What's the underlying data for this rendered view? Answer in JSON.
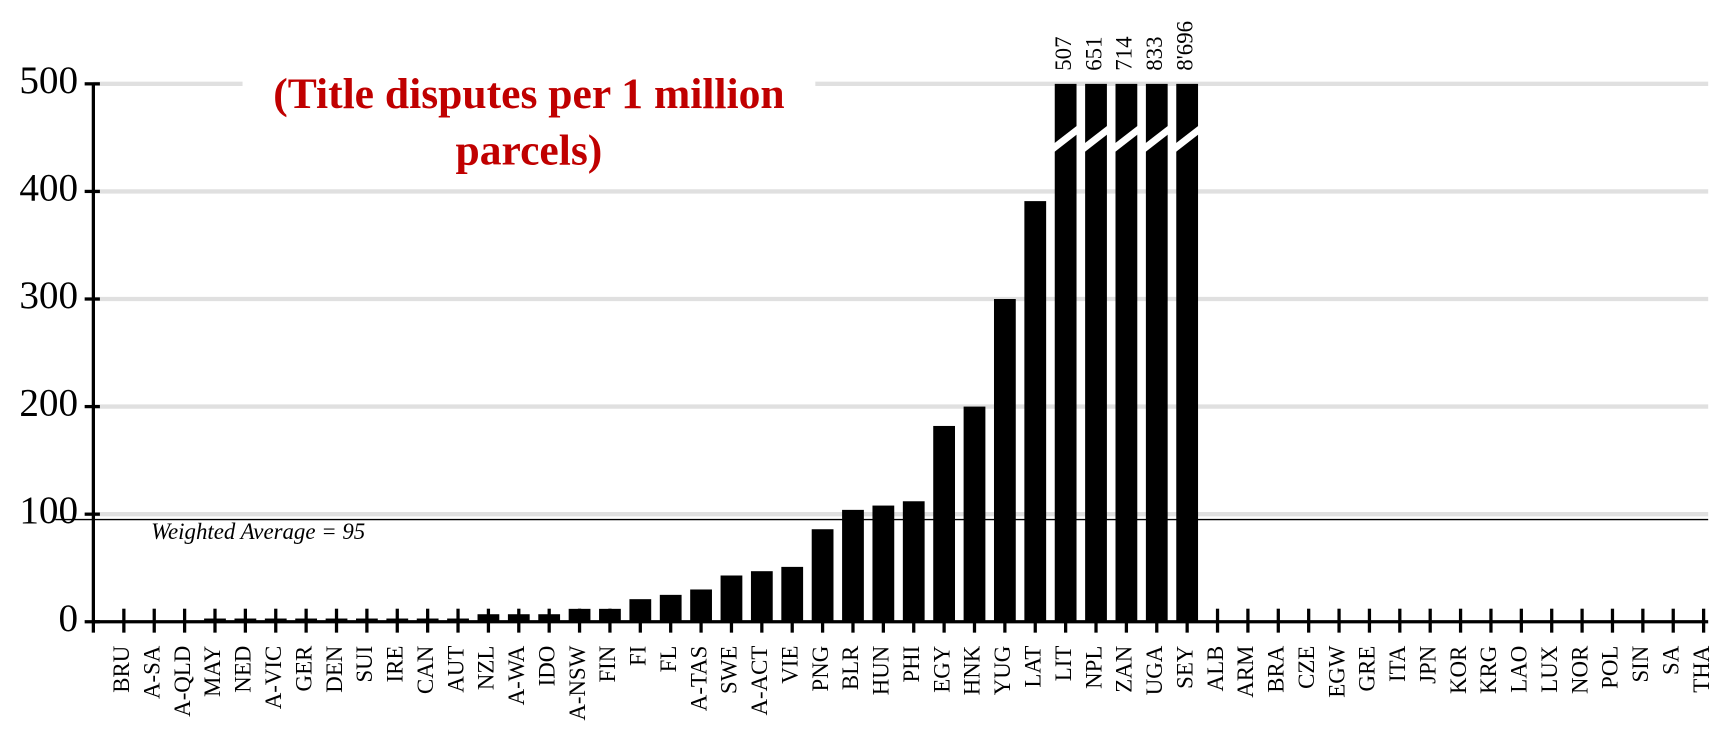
{
  "chart_data": {
    "type": "bar",
    "title": "(Title disputes per 1 million parcels)",
    "categories": [
      "BRU",
      "A-SA",
      "A-QLD",
      "MAY",
      "NED",
      "A-VIC",
      "GER",
      "DEN",
      "SUI",
      "IRE",
      "CAN",
      "AUT",
      "NZL",
      "A-WA",
      "IDO",
      "A-NSW",
      "FIN",
      "FI",
      "FL",
      "A-TAS",
      "SWE",
      "A-ACT",
      "VIE",
      "PNG",
      "BLR",
      "HUN",
      "PHI",
      "EGY",
      "HNK",
      "YUG",
      "LAT",
      "LIT",
      "NPL",
      "ZAN",
      "UGA",
      "SEY",
      "ALB",
      "ARM",
      "BRA",
      "CZE",
      "EGW",
      "GRE",
      "ITA",
      "JPN",
      "KOR",
      "KRG",
      "LAO",
      "LUX",
      "NOR",
      "POL",
      "SIN",
      "SA",
      "THA"
    ],
    "values": [
      null,
      null,
      null,
      3,
      3,
      3,
      3,
      3,
      3,
      3,
      3,
      3,
      7,
      7,
      7,
      12,
      12,
      21,
      25,
      30,
      43,
      47,
      51,
      86,
      104,
      108,
      112,
      182,
      200,
      300,
      391,
      507,
      651,
      714,
      833,
      8696,
      null,
      null,
      null,
      null,
      null,
      null,
      null,
      null,
      null,
      null,
      null,
      null,
      null,
      null,
      null,
      null,
      null
    ],
    "value_labels": [
      null,
      null,
      null,
      null,
      null,
      null,
      null,
      null,
      null,
      null,
      null,
      null,
      null,
      null,
      null,
      null,
      null,
      null,
      null,
      null,
      null,
      null,
      null,
      null,
      null,
      null,
      null,
      null,
      null,
      null,
      null,
      "507",
      "651",
      "714",
      "833",
      "8'696",
      null,
      null,
      null,
      null,
      null,
      null,
      null,
      null,
      null,
      null,
      null,
      null,
      null,
      null,
      null,
      null,
      null
    ],
    "color": "#000000",
    "ylim": [
      0,
      500
    ],
    "yticks": [
      0,
      100,
      200,
      300,
      400,
      500
    ],
    "grid": true,
    "reference_line": {
      "value": 95,
      "label": "Weighted Average = 95"
    }
  }
}
